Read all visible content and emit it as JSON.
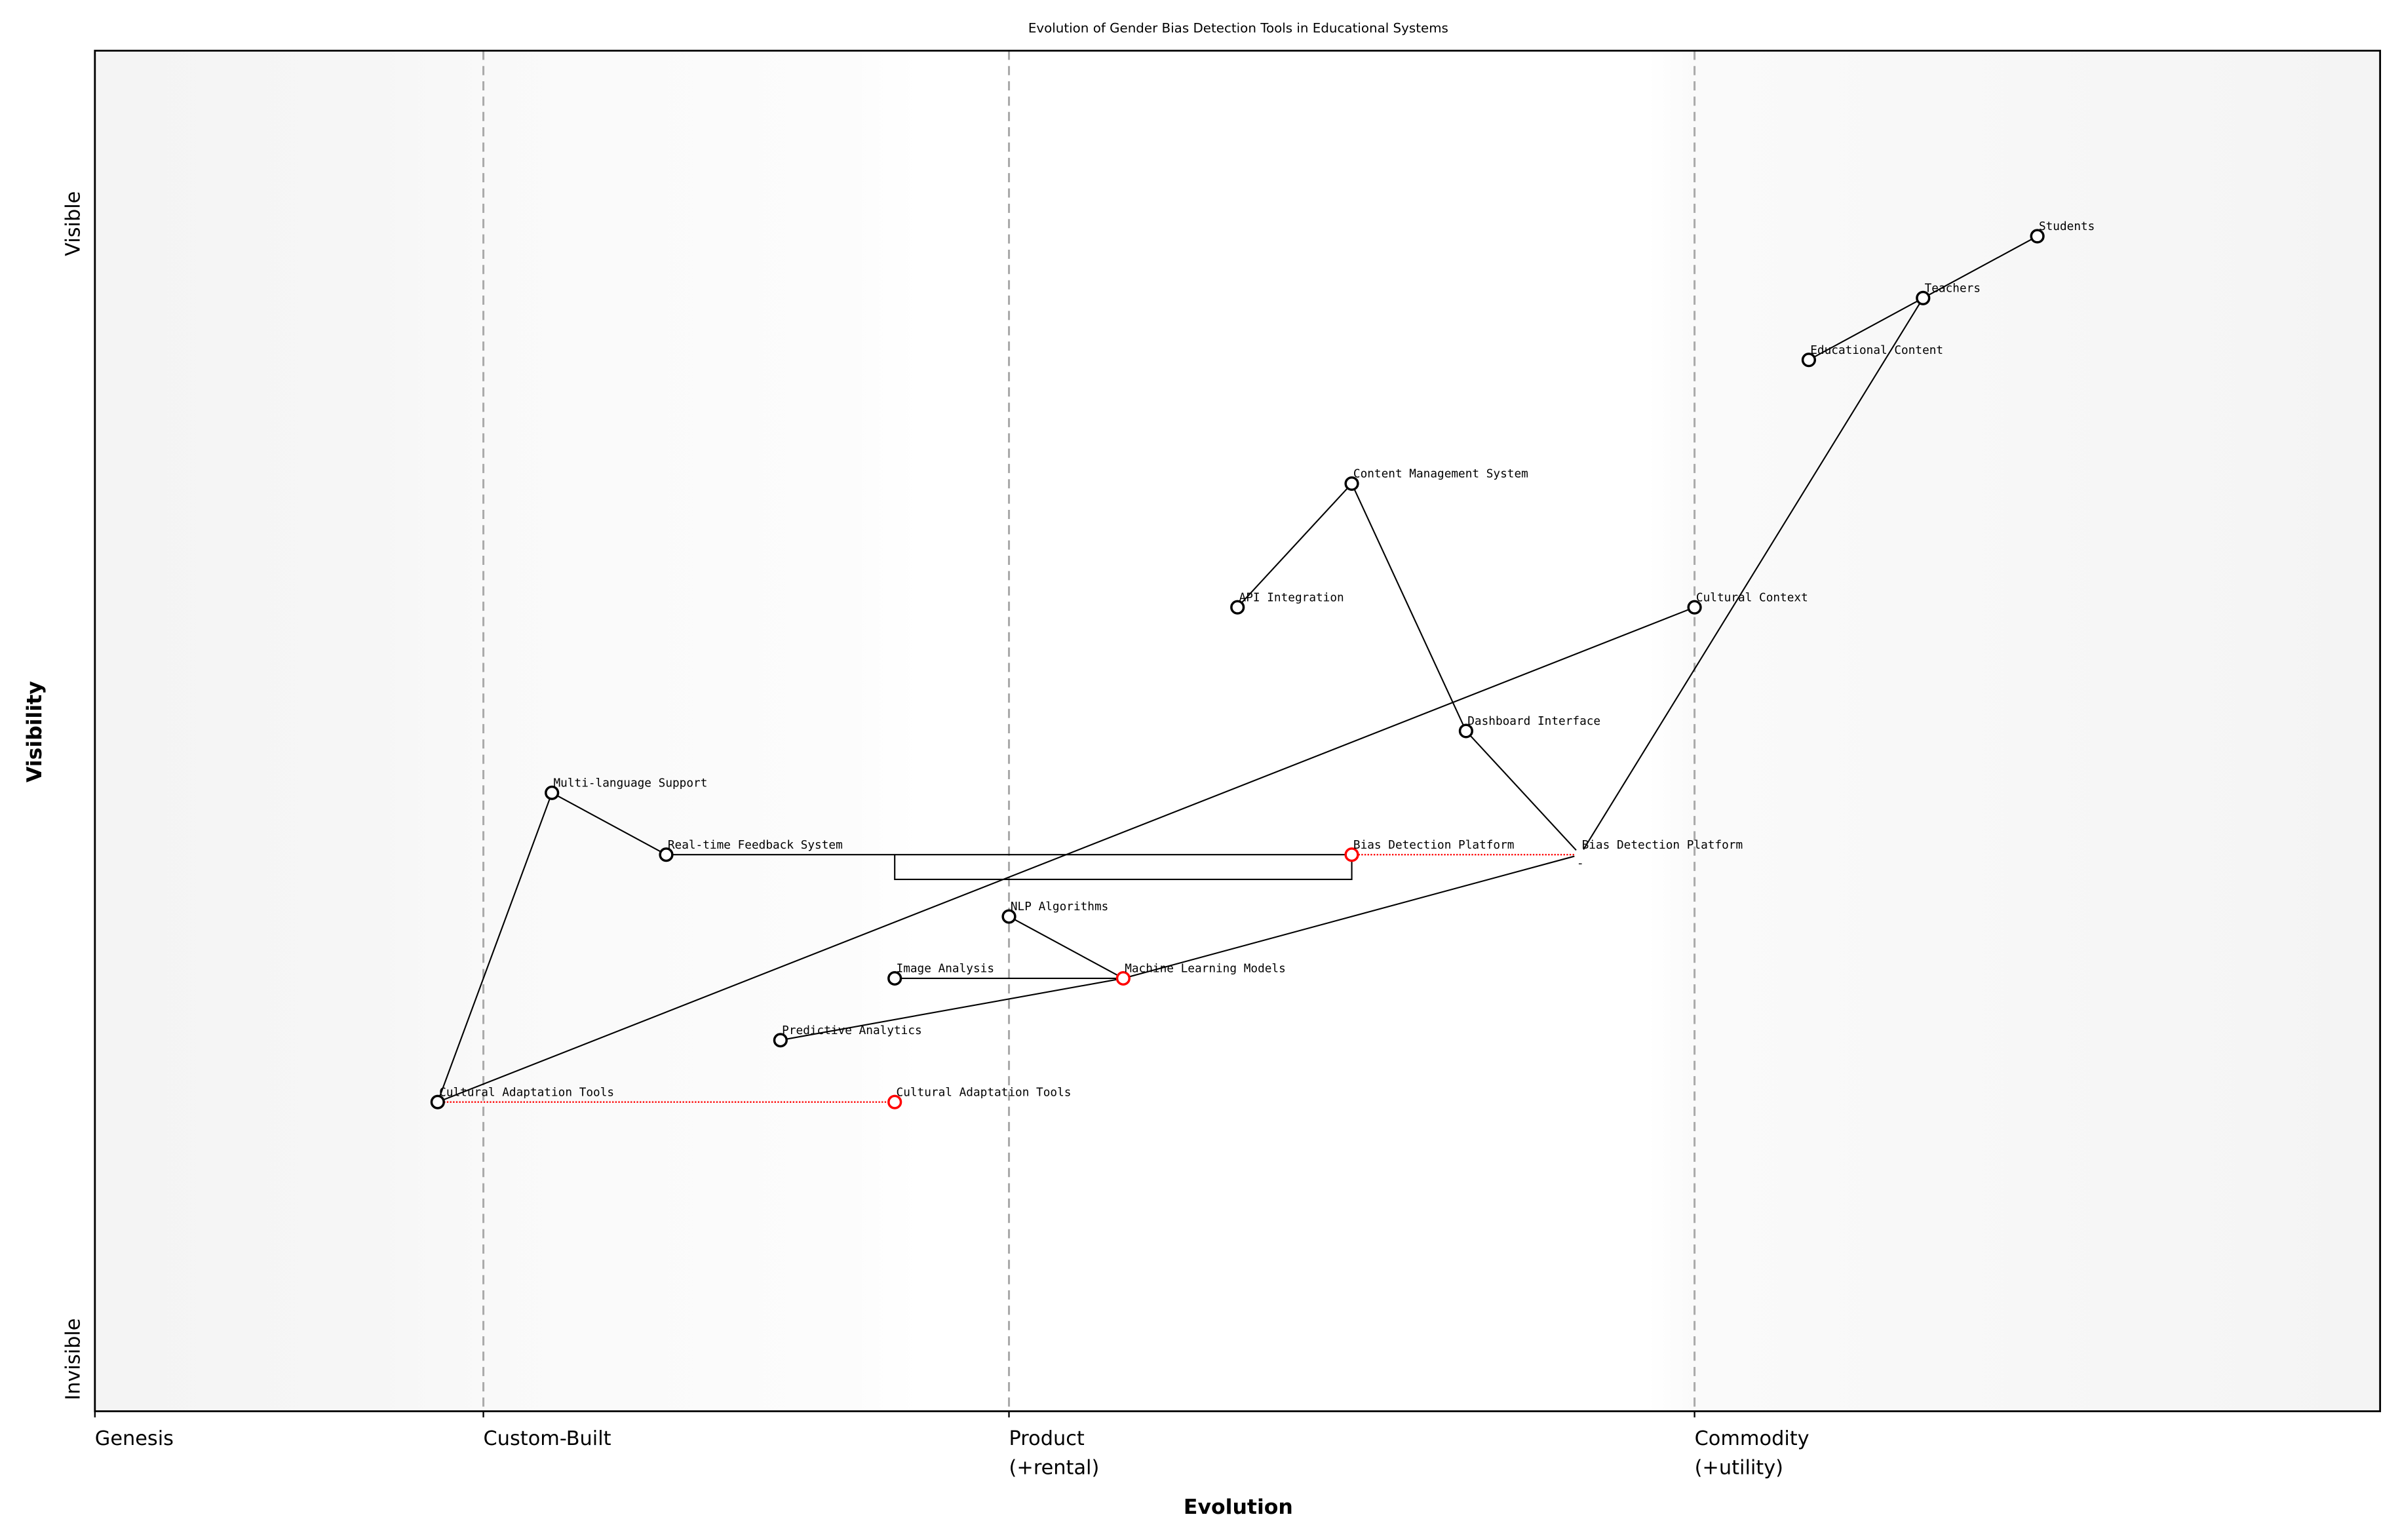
{
  "chart_data": {
    "type": "wardley-map",
    "title": "Evolution of Gender Bias Detection Tools in Educational Systems",
    "xlabel": "Evolution",
    "ylabel": "Visibility",
    "xlim": [
      0,
      1
    ],
    "ylim": [
      0,
      1.1
    ],
    "x_stages": [
      {
        "label": "Genesis",
        "value": 0.0
      },
      {
        "label": "Custom-Built",
        "value": 0.17
      },
      {
        "label": "Product\n(+rental)",
        "value": 0.4
      },
      {
        "label": "Commodity\n(+utility)",
        "value": 0.7
      }
    ],
    "y_labels": {
      "top": "Visible",
      "bottom": "Invisible"
    },
    "colors": {
      "node": "#000000",
      "evolved": "#ff0000",
      "stage_line": "#aaaaaa"
    },
    "components": [
      {
        "name": "Students",
        "evolution": 0.85,
        "visibility": 0.95
      },
      {
        "name": "Teachers",
        "evolution": 0.8,
        "visibility": 0.9
      },
      {
        "name": "Educational Content",
        "evolution": 0.75,
        "visibility": 0.85
      },
      {
        "name": "Content Management System",
        "evolution": 0.55,
        "visibility": 0.75
      },
      {
        "name": "API Integration",
        "evolution": 0.5,
        "visibility": 0.65
      },
      {
        "name": "Cultural Context",
        "evolution": 0.7,
        "visibility": 0.65
      },
      {
        "name": "Dashboard Interface",
        "evolution": 0.6,
        "visibility": 0.55
      },
      {
        "name": "Bias Detection Platform",
        "evolution": 0.65,
        "visibility": 0.45,
        "hidden_marker": true
      },
      {
        "name": "Multi-language Support",
        "evolution": 0.2,
        "visibility": 0.5
      },
      {
        "name": "Real-time Feedback System",
        "evolution": 0.25,
        "visibility": 0.45
      },
      {
        "name": "NLP Algorithms",
        "evolution": 0.4,
        "visibility": 0.4
      },
      {
        "name": "Image Analysis",
        "evolution": 0.35,
        "visibility": 0.35
      },
      {
        "name": "Machine Learning Models",
        "evolution": 0.45,
        "visibility": 0.35,
        "evolved": true
      },
      {
        "name": "Predictive Analytics",
        "evolution": 0.3,
        "visibility": 0.3
      },
      {
        "name": "Cultural Adaptation Tools",
        "evolution": 0.15,
        "visibility": 0.25
      }
    ],
    "evolutions": [
      {
        "name": "Bias Detection Platform",
        "from": 0.65,
        "to": 0.55,
        "visibility": 0.45
      },
      {
        "name": "Cultural Adaptation Tools",
        "from": 0.15,
        "to": 0.35,
        "visibility": 0.25
      }
    ],
    "links": [
      [
        "Students",
        "Teachers"
      ],
      [
        "Teachers",
        "Educational Content"
      ],
      [
        "Teachers",
        "Bias Detection Platform"
      ],
      [
        "Bias Detection Platform",
        "Dashboard Interface"
      ],
      [
        "Dashboard Interface",
        "Content Management System"
      ],
      [
        "Content Management System",
        "API Integration"
      ],
      [
        "Bias Detection Platform",
        "Machine Learning Models"
      ],
      [
        "Machine Learning Models",
        "NLP Algorithms"
      ],
      [
        "Machine Learning Models",
        "Image Analysis"
      ],
      [
        "Machine Learning Models",
        "Predictive Analytics"
      ],
      [
        "Real-time Feedback System",
        "Multi-language Support"
      ],
      [
        "Multi-language Support",
        "Cultural Adaptation Tools"
      ],
      [
        "Cultural Adaptation Tools",
        "Cultural Context"
      ],
      [
        "Real-time Feedback System",
        "Bias Detection Platform (evolved)"
      ]
    ]
  }
}
